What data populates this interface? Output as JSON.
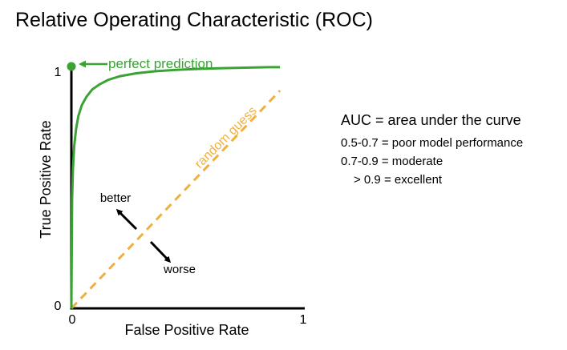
{
  "title": "Relative Operating Characteristic (ROC)",
  "chart_data": {
    "type": "line",
    "title": "Relative Operating Characteristic (ROC)",
    "xlabel": "False Positive Rate",
    "ylabel": "True Positive Rate",
    "xlim": [
      0,
      1
    ],
    "ylim": [
      0,
      1
    ],
    "x_ticks": [
      "0",
      "1"
    ],
    "y_ticks": [
      "0",
      "1"
    ],
    "grid": false,
    "series": [
      {
        "name": "",
        "color": "#3aa334",
        "x": [
          0,
          0.003,
          0.007,
          0.012,
          0.02,
          0.03,
          0.045,
          0.065,
          0.09,
          0.12,
          0.16,
          0.21,
          0.28,
          0.36,
          0.45,
          0.55,
          0.65,
          0.75,
          0.85,
          0.9
        ],
        "y": [
          0,
          0.45,
          0.58,
          0.67,
          0.74,
          0.795,
          0.84,
          0.875,
          0.905,
          0.925,
          0.945,
          0.96,
          0.972,
          0.98,
          0.986,
          0.99,
          0.993,
          0.995,
          0.997,
          0.997
        ]
      },
      {
        "name": "random guess",
        "color": "#f0b03f",
        "x": [
          0,
          0.9
        ],
        "y": [
          0,
          0.9
        ]
      }
    ],
    "perfect_point": {
      "x": 0,
      "y": 1,
      "color": "#3aa334"
    },
    "annotations": {
      "perfect": "perfect prediction",
      "random": "random guess",
      "better": "better",
      "worse": "worse"
    }
  },
  "auc": {
    "definition": "AUC = area under the curve",
    "items": [
      "0.5-0.7 = poor model performance",
      "0.7-0.9 = moderate",
      "  > 0.9 = excellent"
    ]
  }
}
